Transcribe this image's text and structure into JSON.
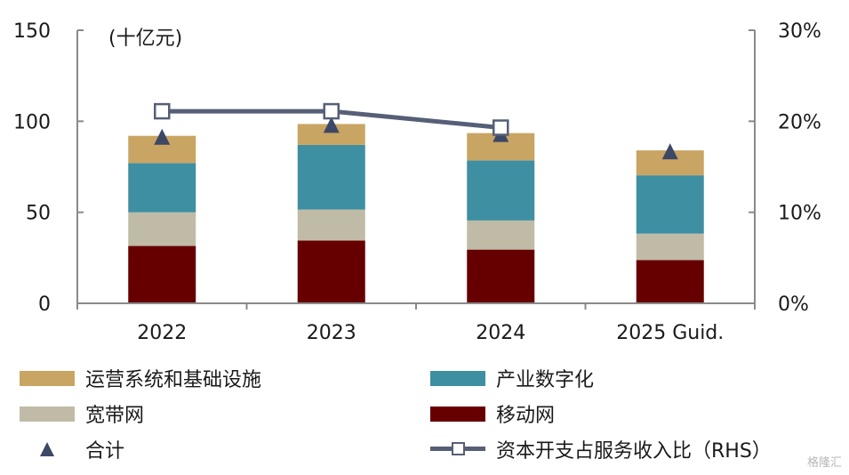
{
  "chart_data": {
    "type": "bar",
    "stacked": true,
    "unit_label": "(十亿元)",
    "categories": [
      "2022",
      "2023",
      "2024",
      "2025 Guid."
    ],
    "left_axis": {
      "min": 0,
      "max": 150,
      "ticks": [
        "0",
        "50",
        "100",
        "150"
      ]
    },
    "right_axis": {
      "min": 0,
      "max": 30,
      "ticks": [
        "0%",
        "10%",
        "20%",
        "30%"
      ]
    },
    "series": [
      {
        "name": "移动网",
        "color": "#660000",
        "values": [
          31.5,
          34.5,
          29.5,
          23.8
        ]
      },
      {
        "name": "宽带网",
        "color": "#c0bba7",
        "values": [
          18.5,
          17.0,
          16.0,
          14.5
        ]
      },
      {
        "name": "产业数字化",
        "color": "#3e8fa1",
        "values": [
          27.0,
          35.5,
          33.0,
          32.0
        ]
      },
      {
        "name": "运营系统和基础设施",
        "color": "#c9a563",
        "values": [
          15.0,
          11.5,
          15.0,
          13.7
        ]
      }
    ],
    "total": {
      "name": "合计",
      "color": "#3d4866",
      "values": [
        92.0,
        98.5,
        93.5,
        84.0
      ]
    },
    "capex_ratio": {
      "name": "资本开支占服务收入比（RHS）",
      "color": "#565f77",
      "values": [
        21.1,
        21.1,
        19.3,
        null
      ]
    },
    "legend_position": "bottom"
  },
  "legend": [
    {
      "key": "ops",
      "label": "运营系统和基础设施"
    },
    {
      "key": "digital",
      "label": "产业数字化"
    },
    {
      "key": "broadband",
      "label": "宽带网"
    },
    {
      "key": "mobile",
      "label": "移动网"
    },
    {
      "key": "total",
      "label": "合计"
    },
    {
      "key": "ratio",
      "label": "资本开支占服务收入比（RHS）"
    }
  ],
  "watermark": "格隆汇"
}
